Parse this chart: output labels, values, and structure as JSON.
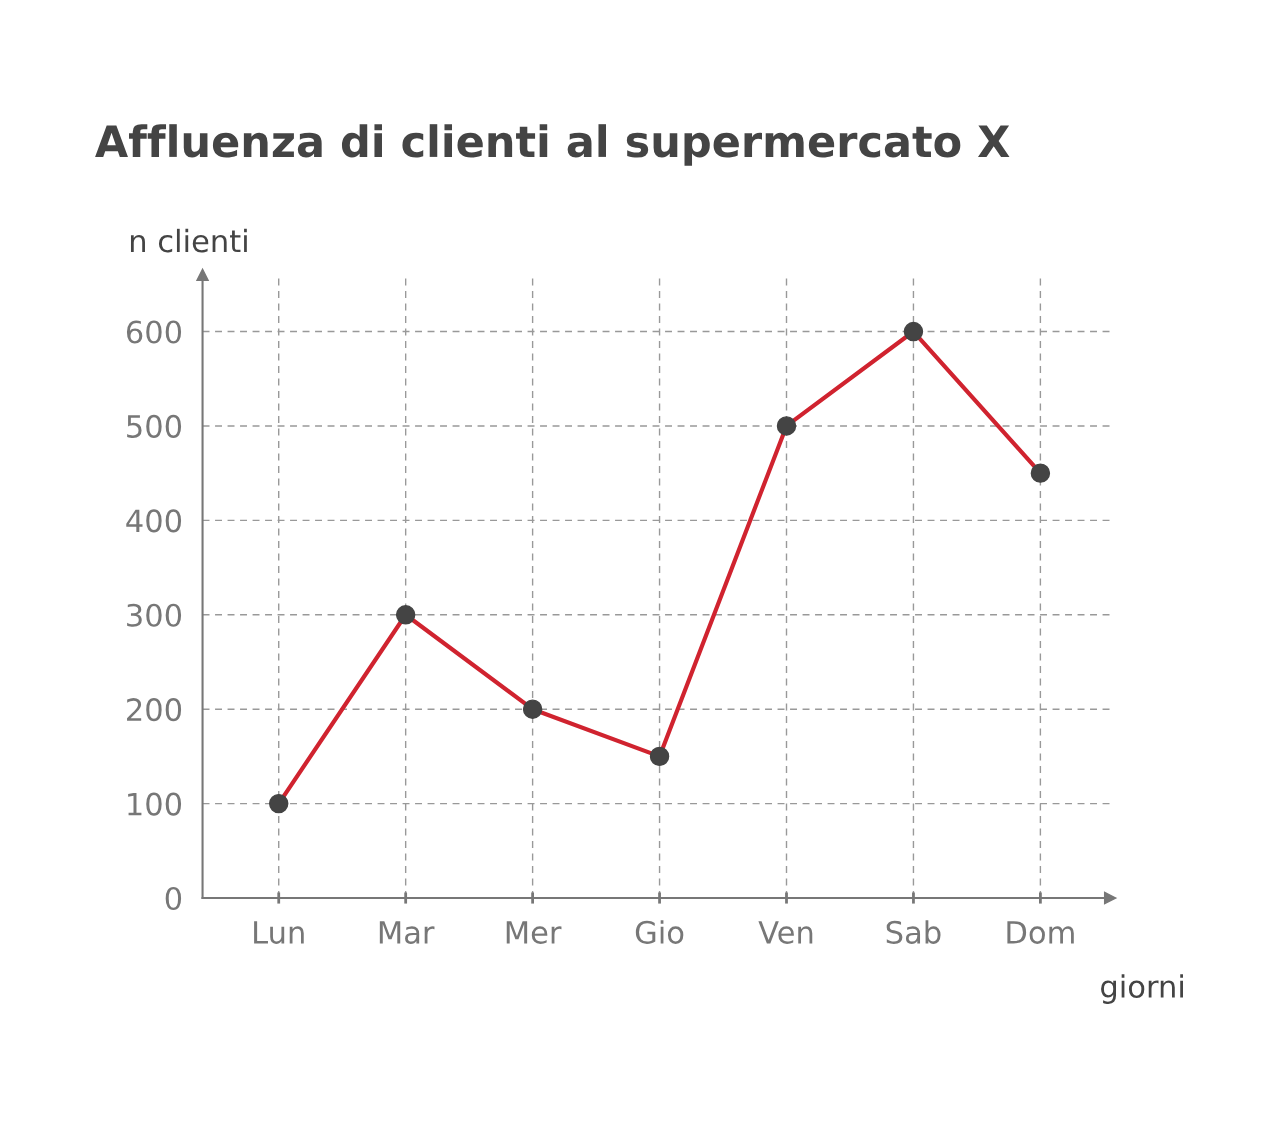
{
  "chart_data": {
    "type": "line",
    "title": "Affluenza di clienti al supermercato X",
    "xlabel": "giorni",
    "ylabel": "n clienti",
    "categories": [
      "Lun",
      "Mar",
      "Mer",
      "Gio",
      "Ven",
      "Sab",
      "Dom"
    ],
    "series": [
      {
        "color": "#d0232f",
        "values": [
          100,
          300,
          200,
          150,
          500,
          600,
          450
        ]
      }
    ],
    "ylim": [
      0,
      660
    ],
    "yticks": [
      0,
      100,
      200,
      300,
      400,
      500,
      600
    ],
    "grid": true,
    "marker": "circle",
    "line_style": "solid"
  }
}
